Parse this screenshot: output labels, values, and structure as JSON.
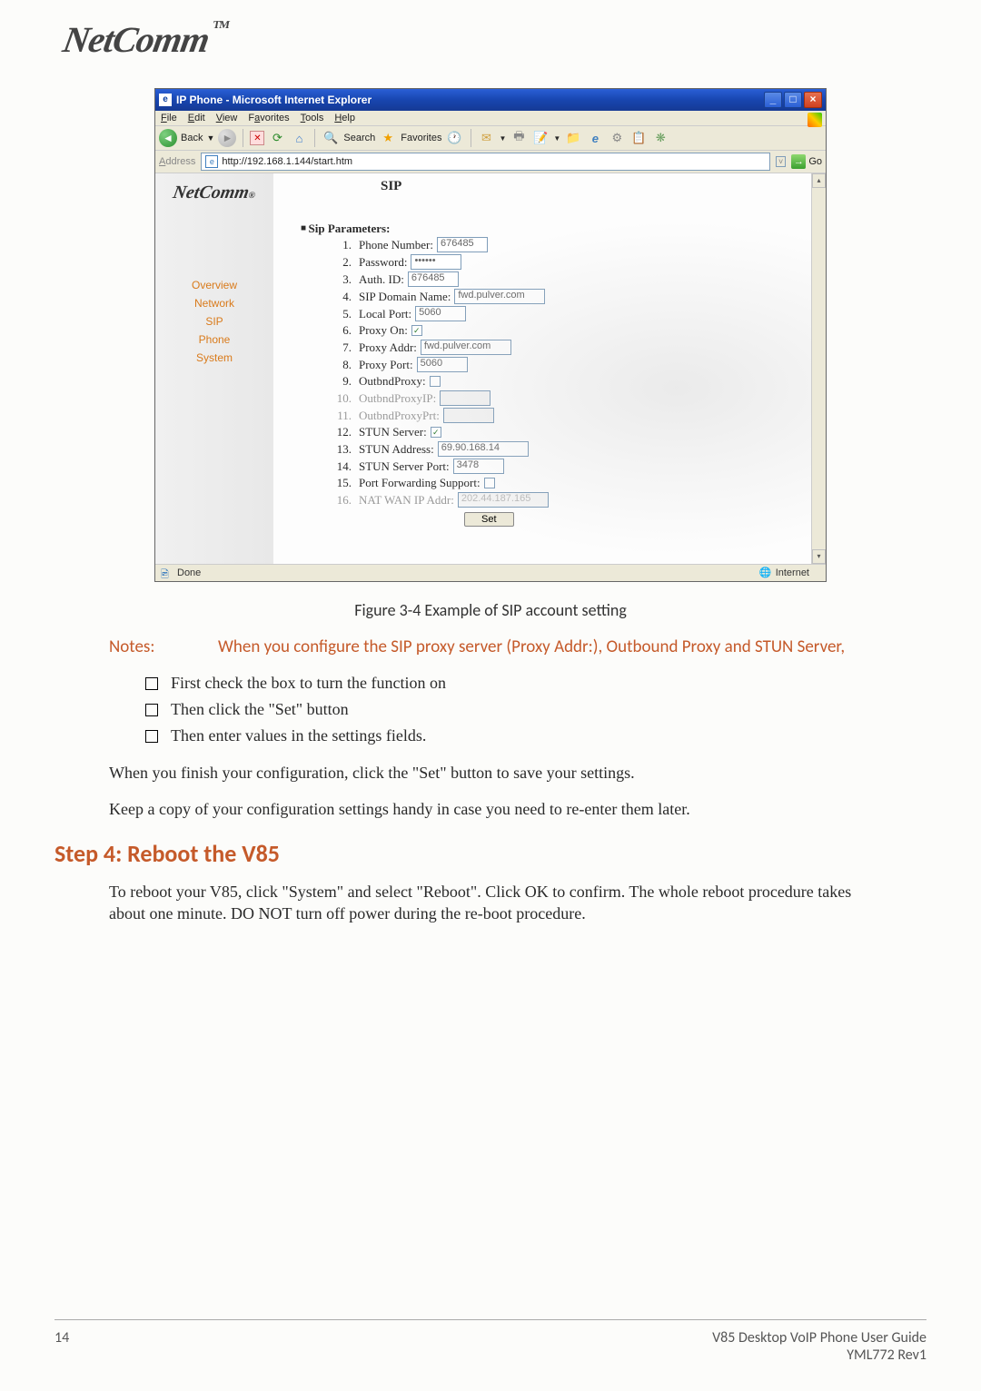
{
  "brand": {
    "name": "NetComm",
    "tm": "TM",
    "reg": "®"
  },
  "ie": {
    "title": "IP Phone - Microsoft Internet Explorer",
    "menus": [
      "File",
      "Edit",
      "View",
      "Favorites",
      "Tools",
      "Help"
    ],
    "toolbar": {
      "back": "Back",
      "search": "Search",
      "favorites": "Favorites"
    },
    "address_label": "Address",
    "address_url": "http://192.168.1.144/start.htm",
    "go": "Go",
    "status_left": "Done",
    "status_right": "Internet"
  },
  "page": {
    "title": "SIP",
    "nav": [
      "Overview",
      "Network",
      "SIP",
      "Phone",
      "System"
    ],
    "param_header": "Sip Parameters:",
    "params": [
      {
        "n": "1.",
        "label": "Phone Number:",
        "type": "text",
        "value": "676485",
        "disabled": false
      },
      {
        "n": "2.",
        "label": "Password:",
        "type": "password",
        "value": "••••••",
        "disabled": false
      },
      {
        "n": "3.",
        "label": "Auth. ID:",
        "type": "text",
        "value": "676485",
        "disabled": false
      },
      {
        "n": "4.",
        "label": "SIP Domain Name:",
        "type": "text",
        "value": "fwd.pulver.com",
        "disabled": false
      },
      {
        "n": "5.",
        "label": "Local Port:",
        "type": "text",
        "value": "5060",
        "disabled": false
      },
      {
        "n": "6.",
        "label": "Proxy On:",
        "type": "check",
        "value": "✓",
        "disabled": false
      },
      {
        "n": "7.",
        "label": "Proxy Addr:",
        "type": "text",
        "value": "fwd.pulver.com",
        "disabled": false
      },
      {
        "n": "8.",
        "label": "Proxy Port:",
        "type": "text",
        "value": "5060",
        "disabled": false
      },
      {
        "n": "9.",
        "label": "OutbndProxy:",
        "type": "check",
        "value": "",
        "disabled": false
      },
      {
        "n": "10.",
        "label": "OutbndProxyIP:",
        "type": "text",
        "value": "",
        "disabled": true
      },
      {
        "n": "11.",
        "label": "OutbndProxyPrt:",
        "type": "text",
        "value": "",
        "disabled": true
      },
      {
        "n": "12.",
        "label": "STUN Server:",
        "type": "check",
        "value": "✓",
        "disabled": false
      },
      {
        "n": "13.",
        "label": "STUN Address:",
        "type": "text",
        "value": "69.90.168.14",
        "disabled": false
      },
      {
        "n": "14.",
        "label": "STUN Server Port:",
        "type": "text",
        "value": "3478",
        "disabled": false
      },
      {
        "n": "15.",
        "label": "Port Forwarding Support:",
        "type": "check",
        "value": "",
        "disabled": false
      },
      {
        "n": "16.",
        "label": "NAT WAN IP Addr:",
        "type": "text",
        "value": "202.44.187.165",
        "disabled": true
      }
    ],
    "set_button": "Set"
  },
  "doc": {
    "figure_caption": "Figure 3-4 Example of SIP account setting",
    "notes_label": "Notes:",
    "notes_text": "When you configure the SIP proxy server (Proxy Addr:), Outbound Proxy and STUN Server,",
    "bullets": [
      "First check the box to turn the function on",
      "Then click the \"Set\" button",
      "Then enter values in the settings fields."
    ],
    "para1": "When you finish your configuration, click the \"Set\" button to save your settings.",
    "para2": "Keep a copy of your configuration settings handy in case you  need to re-enter them later.",
    "step_heading": "Step 4:  Reboot the V85",
    "para3": "To reboot your V85, click \"System\" and select \"Reboot\". Click OK to confirm. The whole reboot procedure takes about one minute. DO NOT turn off power during the re-boot procedure."
  },
  "footer": {
    "page_num": "14",
    "guide": "V85 Desktop VoIP Phone User Guide",
    "rev": "YML772 Rev1"
  }
}
